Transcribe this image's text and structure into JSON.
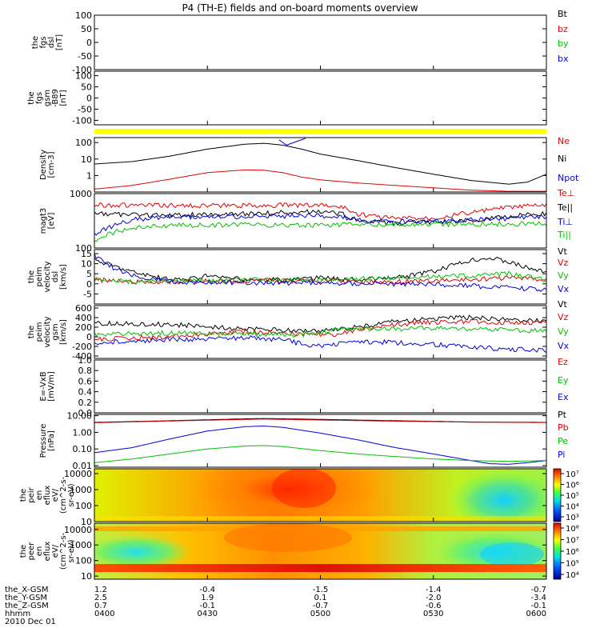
{
  "title": "P4 (TH-E) fields and on-board moments overview",
  "date_label": "2010 Dec 01",
  "chart_data": [
    {
      "type": "line",
      "id": "fgs_dsl",
      "ylabel_lines": [
        "the",
        "fgs",
        "dsl",
        "[nT]"
      ],
      "ylim": [
        -100,
        100
      ],
      "yticks": [
        "100",
        "50",
        "0",
        "-50",
        "-100"
      ],
      "ytick_vals": [
        100,
        50,
        0,
        -50,
        -100
      ],
      "legend": [
        {
          "name": "Bt",
          "color": "#000000"
        },
        {
          "name": "bz",
          "color": "#e00000"
        },
        {
          "name": "by",
          "color": "#00c000"
        },
        {
          "name": "bx",
          "color": "#0000e0"
        }
      ],
      "series": []
    },
    {
      "type": "line",
      "id": "fgs_gsm",
      "ylabel_lines": [
        "the",
        "fgs",
        "gsm",
        "-B89",
        "[nT]"
      ],
      "ylim": [
        -120,
        120
      ],
      "yticks": [
        "100",
        "50",
        "0",
        "-50",
        "-100"
      ],
      "ytick_vals": [
        100,
        50,
        0,
        -50,
        -100
      ],
      "legend": [],
      "series": []
    },
    {
      "type": "area",
      "id": "flag_bar",
      "color": "#ffff00"
    },
    {
      "type": "line",
      "id": "density",
      "log": true,
      "ylabel_lines": [
        "Density",
        "[cm-3]"
      ],
      "ylim": [
        0.1,
        200
      ],
      "yticks": [
        "100",
        "10",
        "1"
      ],
      "ytick_vals": [
        100,
        10,
        1
      ],
      "legend": [
        {
          "name": "Ne",
          "color": "#e00000"
        },
        {
          "name": "Ni",
          "color": "#000000"
        },
        {
          "name": "Npot",
          "color": "#0000e0"
        }
      ],
      "series": [
        {
          "color": "#000000",
          "x": [
            0,
            10,
            20,
            30,
            40,
            45,
            50,
            55,
            60,
            70,
            80,
            90,
            100,
            110,
            115,
            120
          ],
          "y": [
            5,
            7,
            15,
            40,
            80,
            90,
            70,
            40,
            20,
            8,
            3,
            1.2,
            0.5,
            0.3,
            0.4,
            1.2
          ]
        },
        {
          "color": "#e00000",
          "x": [
            0,
            10,
            20,
            30,
            40,
            45,
            50,
            55,
            60,
            70,
            80,
            90,
            100,
            110,
            120
          ],
          "y": [
            0.15,
            0.25,
            0.6,
            1.5,
            2.2,
            2.1,
            1.5,
            0.8,
            0.55,
            0.35,
            0.25,
            0.18,
            0.13,
            0.11,
            0.11
          ]
        },
        {
          "color": "#0000e0",
          "x": [
            49,
            51,
            56
          ],
          "y": [
            150,
            70,
            180
          ]
        }
      ]
    },
    {
      "type": "line",
      "id": "temperature",
      "log": true,
      "ylabel_lines": [
        "magt3",
        "[eV]"
      ],
      "ylim": [
        100,
        1000
      ],
      "yticks": [
        "1000",
        "100"
      ],
      "ytick_vals": [
        1000,
        100
      ],
      "legend": [
        {
          "name": "Te⊥",
          "color": "#e00000"
        },
        {
          "name": "Te||",
          "color": "#000000"
        },
        {
          "name": "Ti⊥",
          "color": "#0000e0"
        },
        {
          "name": "Ti||",
          "color": "#00c000"
        }
      ],
      "series": [
        {
          "color": "#e00000",
          "x": [
            0,
            20,
            40,
            60,
            66,
            70,
            80,
            90,
            100,
            110,
            120
          ],
          "y": [
            620,
            600,
            600,
            620,
            560,
            420,
            350,
            360,
            450,
            560,
            620
          ]
        },
        {
          "color": "#000000",
          "x": [
            0,
            20,
            40,
            60,
            66,
            70,
            80,
            90,
            100,
            110,
            120
          ],
          "y": [
            420,
            400,
            430,
            470,
            420,
            310,
            280,
            300,
            320,
            380,
            430
          ]
        },
        {
          "color": "#0000e0",
          "x": [
            0,
            5,
            10,
            20,
            40,
            60,
            66,
            70,
            80,
            90,
            100,
            110,
            120
          ],
          "y": [
            180,
            260,
            330,
            370,
            380,
            390,
            370,
            320,
            300,
            310,
            330,
            350,
            370
          ]
        },
        {
          "color": "#00c000",
          "x": [
            0,
            5,
            10,
            20,
            40,
            60,
            80,
            100,
            120
          ],
          "y": [
            140,
            190,
            240,
            260,
            265,
            265,
            270,
            275,
            280
          ]
        }
      ]
    },
    {
      "type": "line",
      "id": "velocity_dsl",
      "ylabel_lines": [
        "the",
        "peim",
        "velocity",
        "dsl",
        "[km/s]"
      ],
      "ylim": [
        -10,
        17
      ],
      "yticks": [
        "15",
        "10",
        "5",
        "0",
        "-5"
      ],
      "ytick_vals": [
        15,
        10,
        5,
        0,
        -5
      ],
      "legend": [
        {
          "name": "Vt",
          "color": "#000000"
        },
        {
          "name": "Vz",
          "color": "#e00000"
        },
        {
          "name": "Vy",
          "color": "#00c000"
        },
        {
          "name": "Vx",
          "color": "#0000e0"
        }
      ],
      "series": [
        {
          "color": "#000000",
          "x": [
            0,
            10,
            20,
            25,
            30,
            35,
            40,
            50,
            60,
            70,
            80,
            90,
            95,
            100,
            105,
            110,
            115,
            120
          ],
          "y": [
            12,
            6,
            2,
            2.5,
            4,
            3,
            2,
            2,
            3,
            2,
            3,
            6,
            9,
            12,
            13,
            11,
            8,
            6
          ]
        },
        {
          "color": "#e00000",
          "x": [
            0,
            10,
            20,
            40,
            60,
            80,
            100,
            110,
            120
          ],
          "y": [
            2,
            1,
            1,
            1.5,
            1.5,
            1,
            2,
            3,
            2
          ]
        },
        {
          "color": "#00c000",
          "x": [
            0,
            5,
            10,
            20,
            40,
            60,
            80,
            100,
            110,
            120
          ],
          "y": [
            3,
            2,
            1,
            1,
            2,
            2,
            3,
            4,
            5,
            2
          ]
        },
        {
          "color": "#0000e0",
          "x": [
            0,
            5,
            10,
            20,
            40,
            60,
            80,
            100,
            110,
            120
          ],
          "y": [
            14,
            8,
            4,
            1,
            0.5,
            0.5,
            0,
            -1,
            -2,
            -3
          ]
        }
      ]
    },
    {
      "type": "line",
      "id": "velocity_gsm",
      "ylabel_lines": [
        "the",
        "peim",
        "velocity",
        "gsm",
        "[km/s]"
      ],
      "ylim": [
        -450,
        650
      ],
      "yticks": [
        "600",
        "400",
        "200",
        "0",
        "-200",
        "-400"
      ],
      "ytick_vals": [
        600,
        400,
        200,
        0,
        -200,
        -400
      ],
      "legend": [
        {
          "name": "Vt",
          "color": "#000000"
        },
        {
          "name": "Vz",
          "color": "#e00000"
        },
        {
          "name": "Vy",
          "color": "#00c000"
        },
        {
          "name": "Vx",
          "color": "#0000e0"
        }
      ],
      "series": [
        {
          "color": "#000000",
          "x": [
            0,
            20,
            40,
            60,
            70,
            80,
            90,
            100,
            110,
            120
          ],
          "y": [
            280,
            260,
            160,
            120,
            200,
            320,
            380,
            400,
            360,
            340
          ]
        },
        {
          "color": "#e00000",
          "x": [
            0,
            20,
            40,
            55,
            65,
            70,
            80,
            90,
            100,
            110,
            120
          ],
          "y": [
            -50,
            0,
            100,
            60,
            50,
            150,
            260,
            300,
            320,
            300,
            280
          ]
        },
        {
          "color": "#00c000",
          "x": [
            0,
            20,
            40,
            55,
            60,
            65,
            70,
            80,
            90,
            100,
            110,
            120
          ],
          "y": [
            50,
            80,
            60,
            40,
            100,
            150,
            160,
            160,
            180,
            160,
            140,
            120
          ]
        },
        {
          "color": "#0000e0",
          "x": [
            0,
            20,
            40,
            50,
            55,
            60,
            65,
            70,
            80,
            90,
            100,
            110,
            120
          ],
          "y": [
            -120,
            -60,
            -20,
            -60,
            -150,
            -200,
            -150,
            -100,
            -120,
            -160,
            -220,
            -260,
            -280
          ]
        }
      ]
    },
    {
      "type": "line",
      "id": "efield",
      "ylabel_lines": [
        "E=-VxB",
        "[mV/m]"
      ],
      "ylim": [
        0,
        1
      ],
      "yticks": [
        "1.0",
        "0.8",
        "0.6",
        "0.4",
        "0.2",
        "0.0"
      ],
      "ytick_vals": [
        1,
        0.8,
        0.6,
        0.4,
        0.2,
        0
      ],
      "legend": [
        {
          "name": "Ez",
          "color": "#e00000"
        },
        {
          "name": "Ey",
          "color": "#00c000"
        },
        {
          "name": "Ex",
          "color": "#0000e0"
        }
      ],
      "series": []
    },
    {
      "type": "line",
      "id": "pressure",
      "log": true,
      "ylabel_lines": [
        "Pressure",
        "[nPa]"
      ],
      "ylim": [
        0.008,
        12
      ],
      "yticks": [
        "10.00",
        "1.00",
        "0.10",
        "0.01"
      ],
      "ytick_vals": [
        10,
        1,
        0.1,
        0.01
      ],
      "legend": [
        {
          "name": "Pt",
          "color": "#000000"
        },
        {
          "name": "Pb",
          "color": "#e00000"
        },
        {
          "name": "Pe",
          "color": "#00c000"
        },
        {
          "name": "Pi",
          "color": "#0000e0"
        }
      ],
      "series": [
        {
          "color": "#000000",
          "x": [
            0,
            20,
            40,
            45,
            60,
            80,
            100,
            120
          ],
          "y": [
            4,
            5,
            6.5,
            6.8,
            6,
            5,
            4.2,
            4
          ]
        },
        {
          "color": "#e00000",
          "x": [
            0,
            20,
            40,
            45,
            60,
            80,
            100,
            120
          ],
          "y": [
            3.8,
            4.8,
            6,
            6.3,
            5.5,
            4.7,
            4.1,
            3.9
          ]
        },
        {
          "color": "#0000e0",
          "x": [
            0,
            10,
            20,
            30,
            40,
            45,
            50,
            60,
            70,
            80,
            90,
            100,
            105,
            110,
            115,
            120
          ],
          "y": [
            0.06,
            0.12,
            0.4,
            1.2,
            2.2,
            2.4,
            2,
            0.9,
            0.35,
            0.12,
            0.05,
            0.02,
            0.013,
            0.012,
            0.015,
            0.02
          ]
        },
        {
          "color": "#00c000",
          "x": [
            0,
            10,
            20,
            30,
            40,
            45,
            50,
            60,
            70,
            80,
            90,
            100,
            110,
            120
          ],
          "y": [
            0.015,
            0.025,
            0.05,
            0.1,
            0.15,
            0.16,
            0.14,
            0.08,
            0.05,
            0.035,
            0.025,
            0.02,
            0.018,
            0.02
          ]
        }
      ]
    },
    {
      "type": "heatmap",
      "id": "ion_spectrogram",
      "ylabel_lines": [
        "the",
        "peir",
        "en",
        "eflux",
        "eV/",
        "(cm^2-s-",
        "sr-eV)"
      ],
      "yticks": [
        "10000",
        "1000",
        "100",
        "10"
      ],
      "ytick_vals": [
        4,
        3,
        2,
        1
      ],
      "ylim": [
        1,
        4.3
      ],
      "colorbar_labels": [
        "10⁷",
        "10⁶",
        "10⁵",
        "10⁴",
        "10³"
      ]
    },
    {
      "type": "heatmap",
      "id": "electron_spectrogram",
      "ylabel_lines": [
        "the",
        "peer",
        "en",
        "eflux",
        "eV/",
        "(cm^2-s-",
        "sr-eV)"
      ],
      "yticks": [
        "10000",
        "1000",
        "100",
        "10"
      ],
      "ytick_vals": [
        4,
        3,
        2,
        1
      ],
      "ylim": [
        0.8,
        4.4
      ],
      "colorbar_labels": [
        "10⁸",
        "10⁷",
        "10⁶",
        "10⁵",
        "10⁴"
      ]
    }
  ],
  "x_axis": {
    "xlim": [
      0,
      120
    ],
    "tick_vals": [
      0,
      30,
      60,
      90,
      120
    ],
    "rows": [
      {
        "label": "the_X-GSM",
        "values": [
          "1.2",
          "-0.4",
          "-1.5",
          "-1.4",
          "-0.7"
        ]
      },
      {
        "label": "the_Y-GSM",
        "values": [
          "2.5",
          "1.9",
          "0.1",
          "-2.0",
          "-3.4"
        ]
      },
      {
        "label": "the_Z-GSM",
        "values": [
          "0.7",
          "-0.1",
          "-0.7",
          "-0.6",
          "-0.1"
        ]
      },
      {
        "label": "hhmm",
        "values": [
          "0400",
          "0430",
          "0500",
          "0530",
          "0600"
        ]
      }
    ]
  }
}
